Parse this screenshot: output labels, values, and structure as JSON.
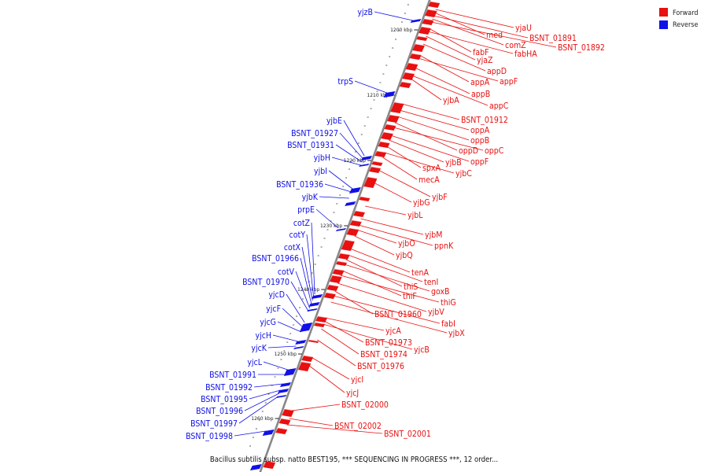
{
  "legend": {
    "forward": {
      "label": "Forward",
      "color": "#e81010"
    },
    "reverse": {
      "label": "Reverse",
      "color": "#1010e8"
    }
  },
  "caption": "Bacillus subtilis subsp. natto BEST195, *** SEQUENCING IN PROGRESS ***, 12 order...",
  "axis": {
    "color": "#888888",
    "ticks": [
      "1200 kbp",
      "1210 kbp",
      "1220 kbp",
      "1230 kbp",
      "1240 kbp",
      "1250 kbp",
      "1260 kbp"
    ]
  },
  "genes": {
    "forward": [
      "yjaU",
      "med",
      "BSNT_01891",
      "comZ",
      "BSNT_01892",
      "fabF",
      "fabHA",
      "yjaZ",
      "appD",
      "appA",
      "appF",
      "appB",
      "yjbA",
      "appC",
      "BSNT_01912",
      "oppA",
      "oppB",
      "oppD",
      "oppC",
      "oppF",
      "yjbB",
      "spxA",
      "yjbC",
      "mecA",
      "yjbF",
      "yjbG",
      "yjbL",
      "yjbM",
      "ppnK",
      "yjbO",
      "yjbQ",
      "tenA",
      "tenI",
      "thiS",
      "goxB",
      "thiF",
      "thiG",
      "yjbV",
      "BSNT_01960",
      "fabI",
      "yjbX",
      "yjcA",
      "BSNT_01973",
      "yjcB",
      "BSNT_01974",
      "BSNT_01976",
      "yjcI",
      "yjcJ",
      "BSNT_02000",
      "BSNT_02002",
      "BSNT_02001"
    ],
    "reverse": [
      "yjzB",
      "trpS",
      "yjbE",
      "BSNT_01927",
      "BSNT_01931",
      "yjbH",
      "yjbI",
      "BSNT_01936",
      "yjbK",
      "prpE",
      "cotZ",
      "cotY",
      "cotX",
      "BSNT_01966",
      "cotV",
      "BSNT_01970",
      "yjcD",
      "yjcF",
      "yjcG",
      "yjcH",
      "yjcK",
      "yjcL",
      "BSNT_01991",
      "BSNT_01992",
      "BSNT_01995",
      "BSNT_01996",
      "BSNT_01997",
      "BSNT_01998"
    ]
  }
}
